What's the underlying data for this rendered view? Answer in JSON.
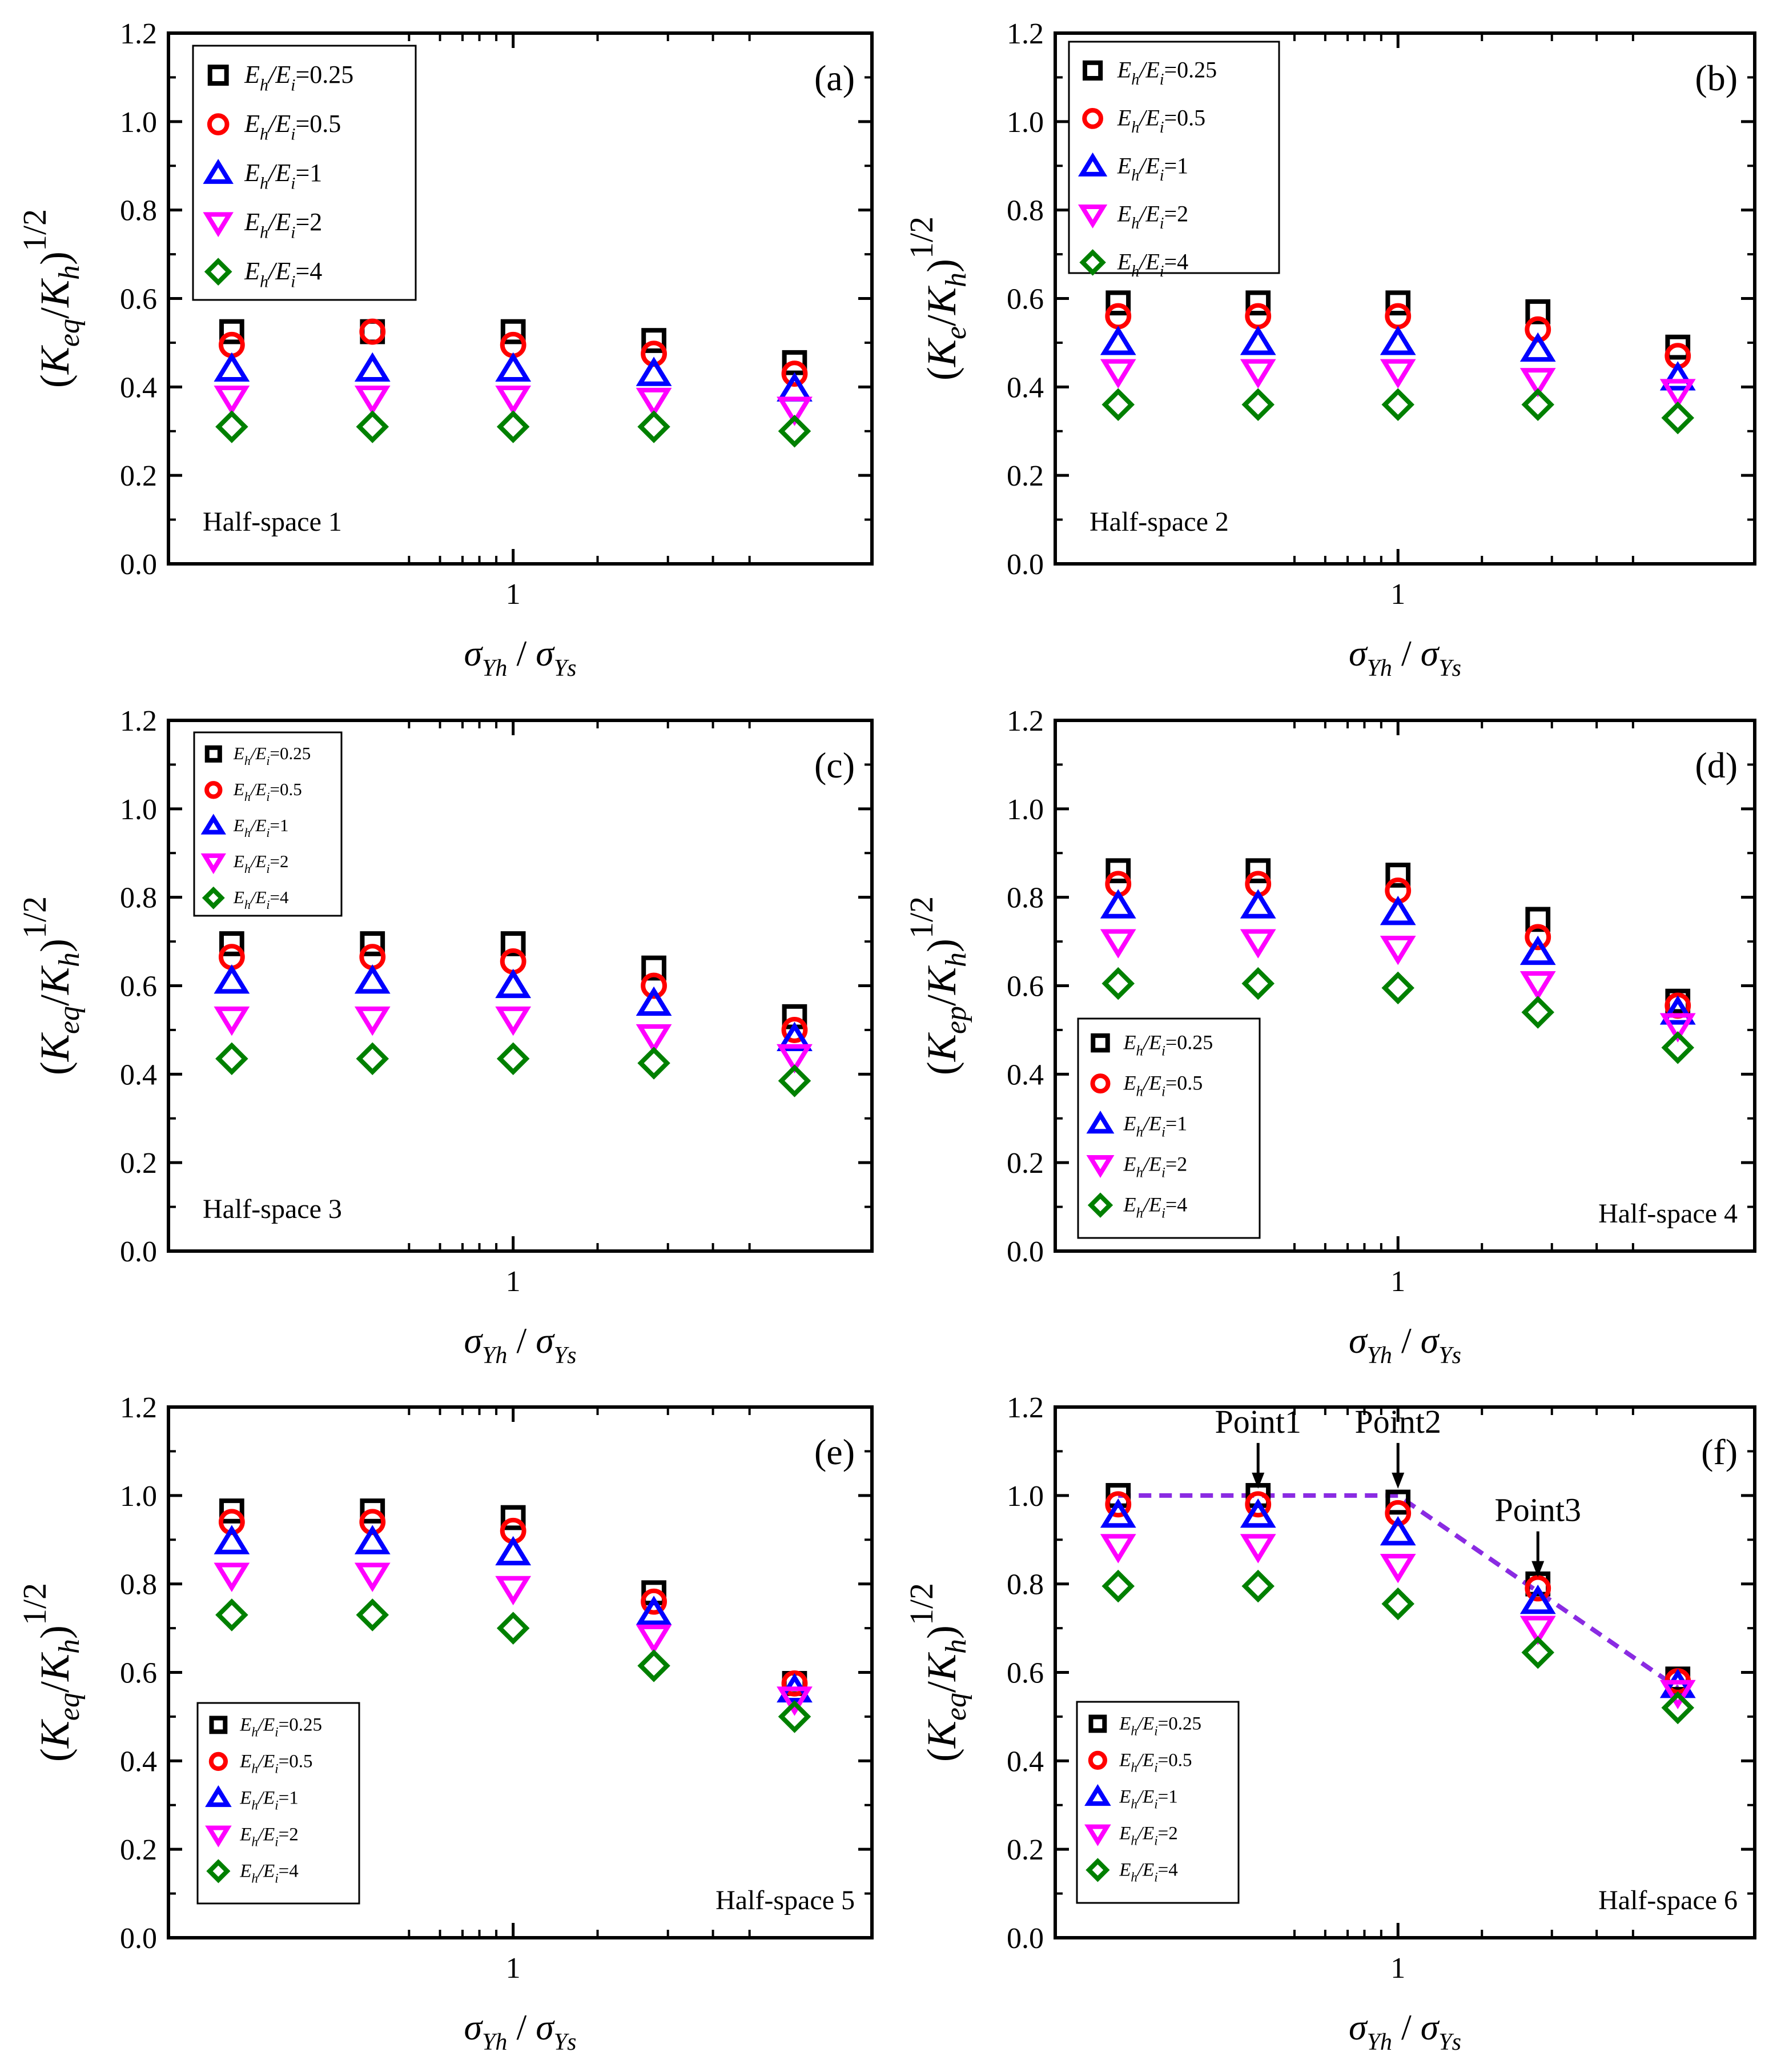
{
  "x_axis_label": {
    "main": "σ",
    "sub1": "Yh",
    "slash": " / ",
    "main2": "σ",
    "sub2": "Ys"
  },
  "x_tick_label": "1",
  "y_ticks": [
    "0.0",
    "0.2",
    "0.4",
    "0.6",
    "0.8",
    "1.0",
    "1.2"
  ],
  "legend_entries": [
    {
      "name": "Eh/Ei=0.25",
      "a": "E",
      "b": "h",
      "c": "/E",
      "d": "i",
      "e": "=0.25",
      "marker": "square",
      "color": "#000000"
    },
    {
      "name": "Eh/Ei=0.5",
      "a": "E",
      "b": "h",
      "c": "/E",
      "d": "i",
      "e": "=0.5",
      "marker": "circle",
      "color": "#ff0000"
    },
    {
      "name": "Eh/Ei=1",
      "a": "E",
      "b": "h",
      "c": "/E",
      "d": "i",
      "e": "=1",
      "marker": "triangle-up",
      "color": "#0000ff"
    },
    {
      "name": "Eh/Ei=2",
      "a": "E",
      "b": "h",
      "c": "/E",
      "d": "i",
      "e": "=2",
      "marker": "triangle-down",
      "color": "#ff00ff"
    },
    {
      "name": "Eh/Ei=4",
      "a": "E",
      "b": "h",
      "c": "/E",
      "d": "i",
      "e": "=4",
      "marker": "diamond",
      "color": "#008000"
    }
  ],
  "dashed_line_color": "#8a2be2",
  "chart_data": [
    {
      "panel": "(a)",
      "type": "scatter",
      "annotation": "Half-space 1",
      "ylabel": {
        "sub": "eq",
        "sup": "1/2"
      },
      "x_positions": [
        1,
        2,
        3,
        4,
        5
      ],
      "x_tick_at": 3,
      "ylim": [
        0,
        1.2
      ],
      "series": [
        {
          "name": "Eh/Ei=0.25",
          "values": [
            0.525,
            0.525,
            0.525,
            0.505,
            0.455
          ]
        },
        {
          "name": "Eh/Ei=0.5",
          "values": [
            0.495,
            0.525,
            0.495,
            0.475,
            0.43
          ]
        },
        {
          "name": "Eh/Ei=1",
          "values": [
            0.44,
            0.44,
            0.44,
            0.43,
            0.395
          ]
        },
        {
          "name": "Eh/Ei=2",
          "values": [
            0.375,
            0.375,
            0.375,
            0.37,
            0.35
          ]
        },
        {
          "name": "Eh/Ei=4",
          "values": [
            0.31,
            0.31,
            0.31,
            0.31,
            0.3
          ]
        }
      ]
    },
    {
      "panel": "(b)",
      "type": "scatter",
      "annotation": "Half-space 2",
      "ylabel": {
        "sub": "e",
        "sup": "1/2"
      },
      "x_positions": [
        1,
        2,
        3,
        4,
        5
      ],
      "x_tick_at": 3,
      "ylim": [
        0,
        1.2
      ],
      "series": [
        {
          "name": "Eh/Ei=0.25",
          "values": [
            0.59,
            0.59,
            0.59,
            0.57,
            0.49
          ]
        },
        {
          "name": "Eh/Ei=0.5",
          "values": [
            0.56,
            0.56,
            0.56,
            0.53,
            0.47
          ]
        },
        {
          "name": "Eh/Ei=1",
          "values": [
            0.5,
            0.5,
            0.5,
            0.485,
            0.42
          ]
        },
        {
          "name": "Eh/Ei=2",
          "values": [
            0.435,
            0.435,
            0.435,
            0.415,
            0.39
          ]
        },
        {
          "name": "Eh/Ei=4",
          "values": [
            0.36,
            0.36,
            0.36,
            0.36,
            0.33
          ]
        }
      ]
    },
    {
      "panel": "(c)",
      "type": "scatter",
      "annotation": "Half-space 3",
      "ylabel": {
        "sub": "eq",
        "sup": "1/2"
      },
      "x_positions": [
        1,
        2,
        3,
        4,
        5
      ],
      "x_tick_at": 3,
      "ylim": [
        0,
        1.2
      ],
      "series": [
        {
          "name": "Eh/Ei=0.25",
          "values": [
            0.695,
            0.695,
            0.695,
            0.64,
            0.53
          ]
        },
        {
          "name": "Eh/Ei=0.5",
          "values": [
            0.665,
            0.665,
            0.655,
            0.6,
            0.5
          ]
        },
        {
          "name": "Eh/Ei=1",
          "values": [
            0.61,
            0.61,
            0.6,
            0.56,
            0.48
          ]
        },
        {
          "name": "Eh/Ei=2",
          "values": [
            0.525,
            0.525,
            0.525,
            0.485,
            0.44
          ]
        },
        {
          "name": "Eh/Ei=4",
          "values": [
            0.435,
            0.435,
            0.435,
            0.425,
            0.385
          ]
        }
      ]
    },
    {
      "panel": "(d)",
      "type": "scatter",
      "annotation": "Half-space 4",
      "ylabel": {
        "sub": "ep",
        "sup": "1/2"
      },
      "x_positions": [
        1,
        2,
        3,
        4,
        5
      ],
      "x_tick_at": 3,
      "ylim": [
        0,
        1.2
      ],
      "series": [
        {
          "name": "Eh/Ei=0.25",
          "values": [
            0.86,
            0.86,
            0.85,
            0.75,
            0.565
          ]
        },
        {
          "name": "Eh/Ei=0.5",
          "values": [
            0.83,
            0.83,
            0.815,
            0.71,
            0.555
          ]
        },
        {
          "name": "Eh/Ei=1",
          "values": [
            0.78,
            0.78,
            0.765,
            0.675,
            0.54
          ]
        },
        {
          "name": "Eh/Ei=2",
          "values": [
            0.7,
            0.7,
            0.685,
            0.605,
            0.51
          ]
        },
        {
          "name": "Eh/Ei=4",
          "values": [
            0.605,
            0.605,
            0.595,
            0.54,
            0.46
          ]
        }
      ]
    },
    {
      "panel": "(e)",
      "type": "scatter",
      "annotation": "Half-space 5",
      "ylabel": {
        "sub": "eq",
        "sup": "1/2"
      },
      "x_positions": [
        1,
        2,
        3,
        4,
        5
      ],
      "x_tick_at": 3,
      "ylim": [
        0,
        1.2
      ],
      "series": [
        {
          "name": "Eh/Ei=0.25",
          "values": [
            0.965,
            0.965,
            0.95,
            0.78,
            0.575
          ]
        },
        {
          "name": "Eh/Ei=0.5",
          "values": [
            0.94,
            0.94,
            0.92,
            0.76,
            0.575
          ]
        },
        {
          "name": "Eh/Ei=1",
          "values": [
            0.895,
            0.895,
            0.87,
            0.735,
            0.56
          ]
        },
        {
          "name": "Eh/Ei=2",
          "values": [
            0.82,
            0.82,
            0.79,
            0.68,
            0.54
          ]
        },
        {
          "name": "Eh/Ei=4",
          "values": [
            0.73,
            0.73,
            0.7,
            0.615,
            0.5
          ]
        }
      ]
    },
    {
      "panel": "(f)",
      "type": "scatter",
      "annotation": "Half-space 6",
      "ylabel": {
        "sub": "eq",
        "sup": "1/2"
      },
      "x_positions": [
        1,
        2,
        3,
        4,
        5
      ],
      "x_tick_at": 3,
      "ylim": [
        0,
        1.2
      ],
      "series": [
        {
          "name": "Eh/Ei=0.25",
          "values": [
            1.0,
            1.0,
            0.985,
            0.8,
            0.585
          ]
        },
        {
          "name": "Eh/Ei=0.5",
          "values": [
            0.98,
            0.98,
            0.96,
            0.79,
            0.58
          ]
        },
        {
          "name": "Eh/Ei=1",
          "values": [
            0.955,
            0.955,
            0.915,
            0.76,
            0.57
          ]
        },
        {
          "name": "Eh/Ei=2",
          "values": [
            0.885,
            0.885,
            0.84,
            0.7,
            0.555
          ]
        },
        {
          "name": "Eh/Ei=4",
          "values": [
            0.795,
            0.795,
            0.755,
            0.645,
            0.52
          ]
        }
      ],
      "dashed_line": {
        "x": [
          1,
          3,
          5
        ],
        "y": [
          1.0,
          1.0,
          0.565
        ]
      },
      "points": [
        {
          "label": "Point1",
          "x": 2,
          "y": 1.0
        },
        {
          "label": "Point2",
          "x": 3,
          "y": 1.0
        },
        {
          "label": "Point3",
          "x": 4,
          "y": 0.8
        }
      ]
    }
  ]
}
